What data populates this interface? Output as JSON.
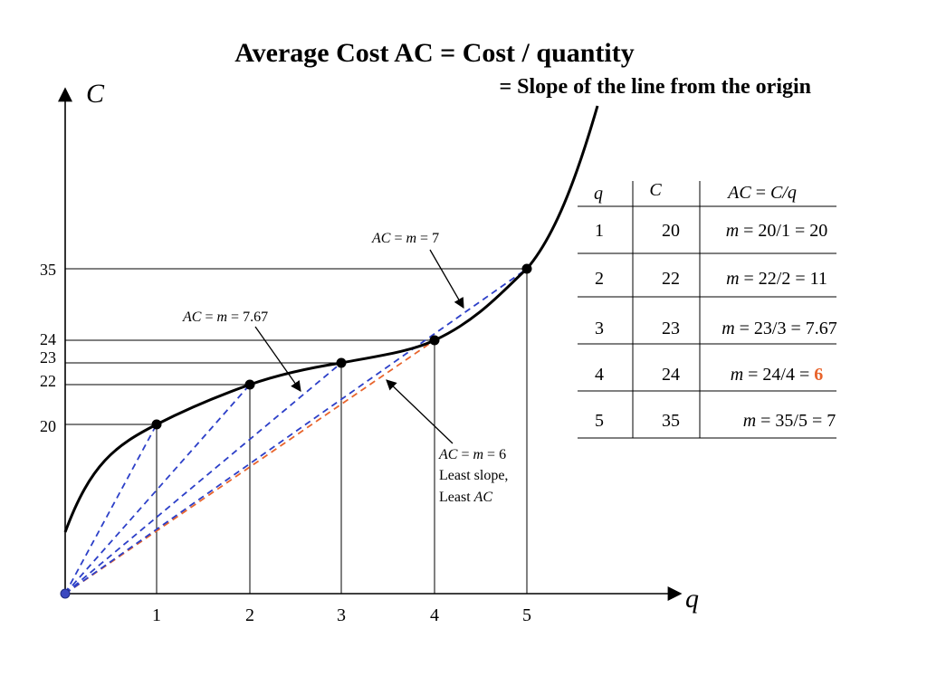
{
  "title": {
    "line1": "Average Cost AC = Cost / quantity",
    "line2": "= Slope of the line from the origin"
  },
  "chart_data": {
    "type": "line",
    "xlabel": "q",
    "ylabel": "C",
    "x_ticks": [
      "1",
      "2",
      "3",
      "4",
      "5"
    ],
    "y_ticks": [
      "20",
      "22",
      "23",
      "24",
      "35"
    ],
    "series": [
      {
        "name": "",
        "x": [
          1,
          2,
          3,
          4,
          5
        ],
        "y": [
          20,
          22,
          23,
          24,
          35
        ]
      }
    ],
    "rays_from_origin": [
      {
        "q": 1,
        "C": 20,
        "color": "#2c3fc8"
      },
      {
        "q": 2,
        "C": 22,
        "color": "#2c3fc8"
      },
      {
        "q": 3,
        "C": 23,
        "color": "#2c3fc8"
      },
      {
        "q": 4,
        "C": 24,
        "color": "#e8642c"
      },
      {
        "q": 5,
        "C": 35,
        "color": "#2c3fc8"
      }
    ],
    "annotations": {
      "ac7": {
        "a": "AC",
        "b": " = ",
        "c": "m",
        "d": " = 7"
      },
      "ac767": {
        "a": "AC",
        "b": " = ",
        "c": "m",
        "d": " = 7.67"
      },
      "ac6": {
        "line1": {
          "a": "AC",
          "b": " = ",
          "c": "m",
          "d": " = 6"
        },
        "line2": "Least slope,",
        "line3": {
          "a": "Least ",
          "b": "AC"
        }
      }
    }
  },
  "table": {
    "headers": {
      "q": "q",
      "c": "C",
      "ac": {
        "a": "AC",
        "b": " = ",
        "c": "C/q"
      }
    },
    "rows": [
      {
        "q": "1",
        "c": "20",
        "m": "m",
        "expr": " = 20/1 = ",
        "result": "20",
        "highlight": false
      },
      {
        "q": "2",
        "c": "22",
        "m": "m",
        "expr": " = 22/2 = ",
        "result": "11",
        "highlight": false
      },
      {
        "q": "3",
        "c": "23",
        "m": "m",
        "expr": " = 23/3 = ",
        "result": "7.67",
        "highlight": false
      },
      {
        "q": "4",
        "c": "24",
        "m": "m",
        "expr": " = 24/4 = ",
        "result": "6",
        "highlight": true
      },
      {
        "q": "5",
        "c": "35",
        "m": "m",
        "expr": " = 35/5 = ",
        "result": "7",
        "highlight": false
      }
    ]
  },
  "colors": {
    "curve": "#000000",
    "ray_default": "#2c3fc8",
    "ray_min": "#e8642c",
    "highlight": "#e8642c"
  }
}
